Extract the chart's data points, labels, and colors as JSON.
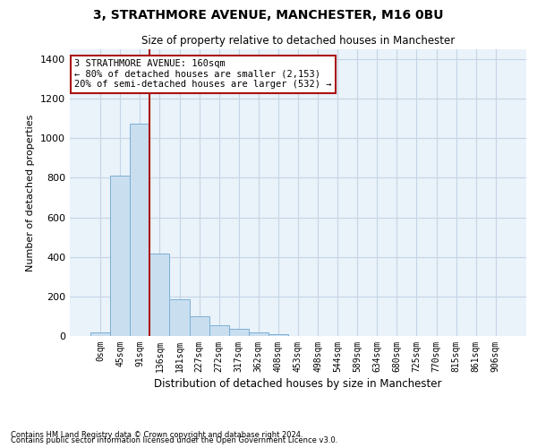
{
  "title": "3, STRATHMORE AVENUE, MANCHESTER, M16 0BU",
  "subtitle": "Size of property relative to detached houses in Manchester",
  "xlabel": "Distribution of detached houses by size in Manchester",
  "ylabel": "Number of detached properties",
  "footnote1": "Contains HM Land Registry data © Crown copyright and database right 2024.",
  "footnote2": "Contains public sector information licensed under the Open Government Licence v3.0.",
  "bar_labels": [
    "0sqm",
    "45sqm",
    "91sqm",
    "136sqm",
    "181sqm",
    "227sqm",
    "272sqm",
    "317sqm",
    "362sqm",
    "408sqm",
    "453sqm",
    "498sqm",
    "544sqm",
    "589sqm",
    "634sqm",
    "680sqm",
    "725sqm",
    "770sqm",
    "815sqm",
    "861sqm",
    "906sqm"
  ],
  "bar_values": [
    20,
    810,
    1075,
    415,
    185,
    100,
    55,
    35,
    20,
    10,
    0,
    0,
    0,
    0,
    0,
    0,
    0,
    0,
    0,
    0,
    0
  ],
  "bar_color": "#c9dff0",
  "bar_edge_color": "#7bafd4",
  "grid_color": "#c5d5e5",
  "background_color": "#eaf2fa",
  "vline_color": "#aa1111",
  "annotation_text": "3 STRATHMORE AVENUE: 160sqm\n← 80% of detached houses are smaller (2,153)\n20% of semi-detached houses are larger (532) →",
  "annotation_box_color": "#aa1111",
  "ylim": [
    0,
    1450
  ],
  "yticks": [
    0,
    200,
    400,
    600,
    800,
    1000,
    1200,
    1400
  ]
}
